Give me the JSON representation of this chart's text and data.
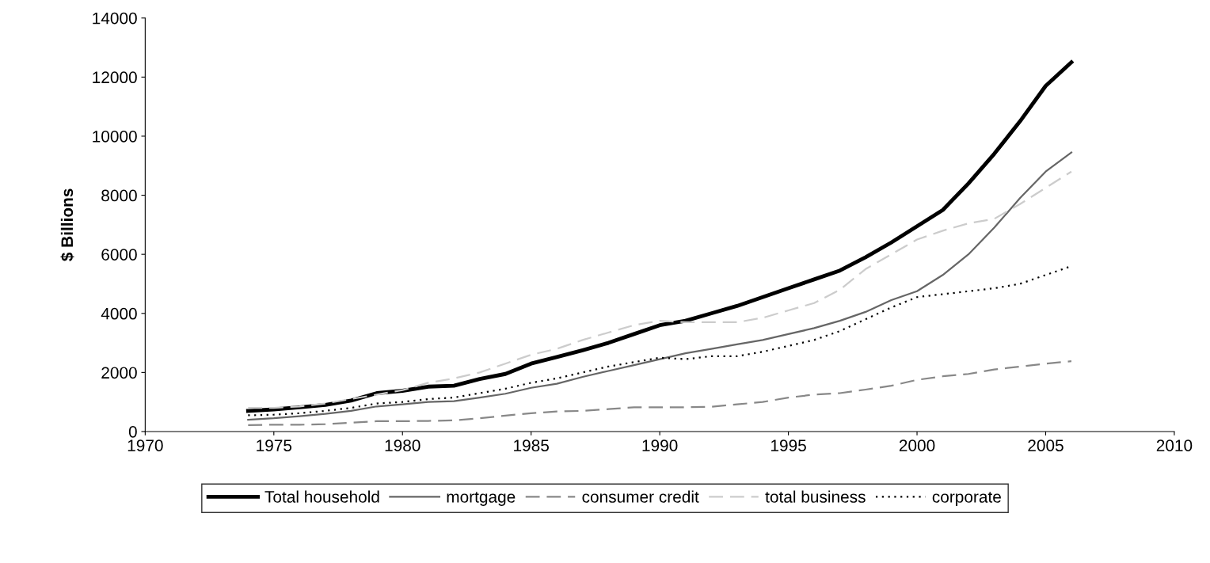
{
  "chart_data": {
    "type": "line",
    "ylabel": "$ Billions",
    "x": [
      1974,
      1975,
      1976,
      1977,
      1978,
      1979,
      1980,
      1981,
      1982,
      1983,
      1984,
      1985,
      1986,
      1987,
      1988,
      1989,
      1990,
      1991,
      1992,
      1993,
      1994,
      1995,
      1996,
      1997,
      1998,
      1999,
      2000,
      2001,
      2002,
      2003,
      2004,
      2005,
      2006
    ],
    "series": [
      {
        "name": "Total household",
        "color": "#000000",
        "line_style": "solid",
        "values": [
          700,
          750,
          820,
          900,
          1050,
          1300,
          1380,
          1520,
          1550,
          1780,
          1950,
          2300,
          2520,
          2750,
          3000,
          3300,
          3600,
          3750,
          4000,
          4250,
          4550,
          4850,
          5150,
          5450,
          5900,
          6400,
          6950,
          7500,
          8400,
          9400,
          10500,
          11700,
          12500
        ]
      },
      {
        "name": "mortgage",
        "color": "#666666",
        "line_style": "solid",
        "values": [
          400,
          450,
          520,
          600,
          700,
          850,
          920,
          1000,
          1030,
          1150,
          1280,
          1480,
          1620,
          1850,
          2050,
          2250,
          2450,
          2650,
          2800,
          2950,
          3100,
          3300,
          3500,
          3750,
          4050,
          4450,
          4750,
          5300,
          6000,
          6900,
          7900,
          8800,
          9450
        ]
      },
      {
        "name": "consumer credit",
        "color": "#888888",
        "line_style": "dashed",
        "values": [
          220,
          230,
          230,
          250,
          300,
          350,
          350,
          360,
          380,
          450,
          540,
          620,
          680,
          700,
          760,
          820,
          820,
          820,
          840,
          920,
          1000,
          1150,
          1250,
          1300,
          1420,
          1550,
          1750,
          1870,
          1950,
          2100,
          2200,
          2300,
          2380
        ]
      },
      {
        "name": "total business",
        "color": "#cccccc",
        "line_style": "dashed",
        "values": [
          800,
          800,
          850,
          950,
          1100,
          1250,
          1400,
          1650,
          1800,
          2000,
          2300,
          2600,
          2800,
          3100,
          3350,
          3600,
          3750,
          3700,
          3700,
          3700,
          3850,
          4100,
          4350,
          4800,
          5500,
          6000,
          6500,
          6800,
          7050,
          7200,
          7700,
          8250,
          8800
        ]
      },
      {
        "name": "corporate",
        "color": "#000000",
        "line_style": "dotted",
        "values": [
          550,
          570,
          620,
          700,
          800,
          950,
          1000,
          1100,
          1150,
          1300,
          1450,
          1650,
          1800,
          2000,
          2200,
          2350,
          2500,
          2450,
          2550,
          2550,
          2700,
          2900,
          3100,
          3400,
          3800,
          4200,
          4550,
          4650,
          4750,
          4850,
          5000,
          5300,
          5600
        ]
      }
    ],
    "xlim": [
      1970,
      2010
    ],
    "xticks": [
      1970,
      1975,
      1980,
      1985,
      1990,
      1995,
      2000,
      2005,
      2010
    ],
    "ylim": [
      0,
      14000
    ],
    "yticks": [
      0,
      2000,
      4000,
      6000,
      8000,
      10000,
      12000,
      14000
    ],
    "grid": false,
    "legend": "bottom"
  }
}
